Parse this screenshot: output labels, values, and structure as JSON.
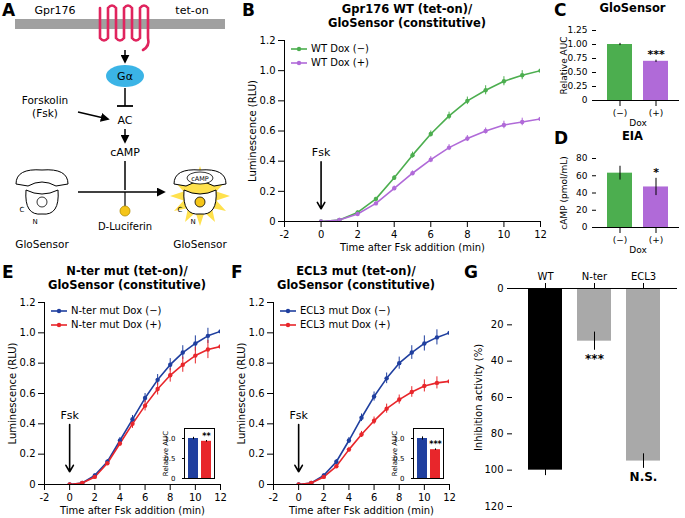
{
  "diagram": {
    "panel": "A",
    "labels": {
      "receptor": "Gpr176",
      "promoter": "tet-on",
      "g_protein": "Gα",
      "drug": "Forskolin\n(Fsk)",
      "enzyme": "AC",
      "messenger": "cAMP",
      "substrate": "D-Luciferin",
      "sensor": "GloSensor",
      "sensor_ligand": "cAMP",
      "c_terminus": "C",
      "n_terminus": "N"
    }
  },
  "chart_data": [
    {
      "panel": "B",
      "type": "line",
      "title": "Gpr176 WT (tet-on)/\nGloSensor (constitutive)",
      "xlabel": "Time after Fsk addition (min)",
      "ylabel": "Luminescence (RLU)",
      "x": [
        0,
        1,
        2,
        3,
        4,
        5,
        6,
        7,
        8,
        9,
        10,
        11,
        12
      ],
      "series": [
        {
          "name": "WT Dox (−)",
          "color": "#4cae4f",
          "marker": "circle",
          "values": [
            0,
            0.01,
            0.06,
            0.15,
            0.29,
            0.44,
            0.58,
            0.7,
            0.8,
            0.87,
            0.93,
            0.97,
            1.0
          ],
          "error": [
            0,
            0.005,
            0.01,
            0.01,
            0.015,
            0.02,
            0.02,
            0.025,
            0.025,
            0.03,
            0.03,
            0.03,
            0.03
          ]
        },
        {
          "name": "WT Dox (+)",
          "color": "#b06ad8",
          "marker": "circle",
          "values": [
            0,
            0.01,
            0.05,
            0.12,
            0.22,
            0.32,
            0.41,
            0.49,
            0.55,
            0.6,
            0.64,
            0.66,
            0.68
          ],
          "error": [
            0,
            0.005,
            0.01,
            0.01,
            0.015,
            0.015,
            0.02,
            0.02,
            0.02,
            0.02,
            0.025,
            0.025,
            0.025
          ]
        }
      ],
      "xlim": [
        -2,
        12
      ],
      "xticks": [
        -2,
        0,
        2,
        4,
        6,
        8,
        10,
        12
      ],
      "ylim": [
        0,
        1.2
      ],
      "yticks": [
        0,
        0.2,
        0.4,
        0.6,
        0.8,
        {
          "value": 1,
          "label": "1.0"
        },
        1.2
      ],
      "legend": "top-left",
      "grid": false,
      "annotations": [
        {
          "text": "Fsk",
          "x": 0
        }
      ]
    },
    {
      "panel": "C",
      "type": "bar",
      "title": "GloSensor",
      "xlabel": "Dox",
      "ylabel": "Relative AUC",
      "categories": [
        "(−)",
        "(+)"
      ],
      "values": [
        1.0,
        0.7
      ],
      "error": [
        0.02,
        0.02
      ],
      "colors": [
        "#4cae4f",
        "#b06ad8"
      ],
      "ylim": [
        0,
        1.25
      ],
      "yticks": [
        0,
        0.25,
        {
          "value": 0.5,
          "label": "0.50"
        },
        0.75,
        {
          "value": 1,
          "label": "1.00"
        },
        1.25
      ],
      "grid": false,
      "annotations": [
        {
          "text": "***",
          "category": "(+)"
        }
      ]
    },
    {
      "panel": "D",
      "type": "bar",
      "title": "EIA",
      "xlabel": "Dox",
      "ylabel": "cAMP (pmol/mL)",
      "categories": [
        "(−)",
        "(+)"
      ],
      "values": [
        63,
        47
      ],
      "error": [
        8,
        10
      ],
      "colors": [
        "#4cae4f",
        "#b06ad8"
      ],
      "ylim": [
        0,
        80
      ],
      "yticks": [
        0,
        20,
        40,
        60,
        80
      ],
      "grid": false,
      "annotations": [
        {
          "text": "*",
          "category": "(+)"
        }
      ]
    },
    {
      "panel": "E",
      "type": "line",
      "title": "N-ter mut (tet-on)/\nGloSensor (constitutive)",
      "xlabel": "Time after Fsk addition (min)",
      "ylabel": "Luminescence (RLU)",
      "x": [
        0,
        1,
        2,
        3,
        4,
        5,
        6,
        7,
        8,
        9,
        10,
        11,
        12
      ],
      "series": [
        {
          "name": "N-ter mut Dox (−)",
          "color": "#1f3f9f",
          "marker": "circle",
          "values": [
            0,
            0.01,
            0.06,
            0.15,
            0.29,
            0.43,
            0.57,
            0.69,
            0.79,
            0.87,
            0.93,
            0.98,
            1.01
          ],
          "error": [
            0,
            0.005,
            0.01,
            0.015,
            0.02,
            0.025,
            0.03,
            0.035,
            0.04,
            0.045,
            0.05,
            0.05,
            0.05
          ]
        },
        {
          "name": "N-ter mut Dox (+)",
          "color": "#e8262b",
          "marker": "circle",
          "values": [
            0,
            0.01,
            0.05,
            0.14,
            0.27,
            0.4,
            0.52,
            0.63,
            0.72,
            0.79,
            0.85,
            0.89,
            0.91
          ],
          "error": [
            0,
            0.005,
            0.01,
            0.015,
            0.02,
            0.03,
            0.035,
            0.04,
            0.045,
            0.05,
            0.055,
            0.06,
            0.06
          ]
        }
      ],
      "xlim": [
        -2,
        12
      ],
      "xticks": [
        -2,
        0,
        2,
        4,
        6,
        8,
        10,
        12
      ],
      "ylim": [
        0,
        1.2
      ],
      "yticks": [
        0,
        0.2,
        0.4,
        0.6,
        0.8,
        {
          "value": 1,
          "label": "1.0"
        },
        1.2
      ],
      "legend": "top-left",
      "grid": false,
      "annotations": [
        {
          "text": "Fsk",
          "x": 0
        }
      ],
      "inset": {
        "type": "bar",
        "ylabel": "Relative AUC",
        "categories": [
          null,
          null
        ],
        "values": [
          1.0,
          0.93
        ],
        "error": [
          0.03,
          0.02
        ],
        "colors": [
          "#1f3f9f",
          "#e8262b"
        ],
        "ylim": [
          0,
          1.25
        ],
        "yticks": [
          0,
          0.5,
          {
            "value": 1,
            "label": "1.0"
          }
        ],
        "tick_labels": "y",
        "annotations": [
          {
            "text": "**",
            "category_index": 1
          }
        ]
      }
    },
    {
      "panel": "F",
      "type": "line",
      "title": "ECL3 mut (tet-on)/\nGloSensor (constitutive)",
      "xlabel": "Time after Fsk addition (min)",
      "ylabel": "Luminescence (RLU)",
      "x": [
        0,
        1,
        2,
        3,
        4,
        5,
        6,
        7,
        8,
        9,
        10,
        11,
        12
      ],
      "series": [
        {
          "name": "ECL3 mut Dox (−)",
          "color": "#1f3f9f",
          "marker": "circle",
          "values": [
            0,
            0.01,
            0.06,
            0.15,
            0.29,
            0.44,
            0.58,
            0.7,
            0.8,
            0.87,
            0.93,
            0.97,
            1.0
          ],
          "error": [
            0,
            0.005,
            0.01,
            0.015,
            0.02,
            0.025,
            0.03,
            0.035,
            0.04,
            0.045,
            0.05,
            0.05,
            0.05
          ]
        },
        {
          "name": "ECL3 mut Dox (+)",
          "color": "#e8262b",
          "marker": "circle",
          "values": [
            0,
            0.01,
            0.05,
            0.12,
            0.23,
            0.33,
            0.42,
            0.5,
            0.56,
            0.61,
            0.65,
            0.67,
            0.68
          ],
          "error": [
            0,
            0.005,
            0.01,
            0.01,
            0.015,
            0.02,
            0.025,
            0.03,
            0.03,
            0.035,
            0.04,
            0.04,
            0.04
          ]
        }
      ],
      "xlim": [
        -2,
        12
      ],
      "xticks": [
        -2,
        0,
        2,
        4,
        6,
        8,
        10,
        12
      ],
      "ylim": [
        0,
        1.2
      ],
      "yticks": [
        0,
        0.2,
        0.4,
        0.6,
        0.8,
        {
          "value": 1,
          "label": "1.0"
        },
        1.2
      ],
      "legend": "top-left",
      "grid": false,
      "annotations": [
        {
          "text": "Fsk",
          "x": 0
        }
      ],
      "inset": {
        "type": "bar",
        "ylabel": "Relative AUC",
        "categories": [
          null,
          null
        ],
        "values": [
          1.0,
          0.72
        ],
        "error": [
          0.04,
          0.02
        ],
        "colors": [
          "#1f3f9f",
          "#e8262b"
        ],
        "ylim": [
          0,
          1.25
        ],
        "yticks": [
          0,
          0.5,
          {
            "value": 1,
            "label": "1.0"
          }
        ],
        "tick_labels": "y",
        "annotations": [
          {
            "text": "***",
            "category_index": 1
          }
        ]
      }
    },
    {
      "panel": "G",
      "type": "bar",
      "ylabel": "Inhibition activity (%)",
      "categories": [
        "WT",
        "N-ter",
        "ECL3"
      ],
      "values": [
        100,
        29,
        95
      ],
      "error": [
        3,
        5,
        4
      ],
      "colors": [
        "#000000",
        "#a9a9a9",
        "#a9a9a9"
      ],
      "ylim": [
        120,
        0
      ],
      "yticks": [
        0,
        20,
        40,
        60,
        80,
        100,
        120
      ],
      "grid": false,
      "annotations": [
        {
          "text": "***",
          "category": "N-ter"
        },
        {
          "text": "N.S.",
          "category": "ECL3"
        }
      ]
    }
  ]
}
